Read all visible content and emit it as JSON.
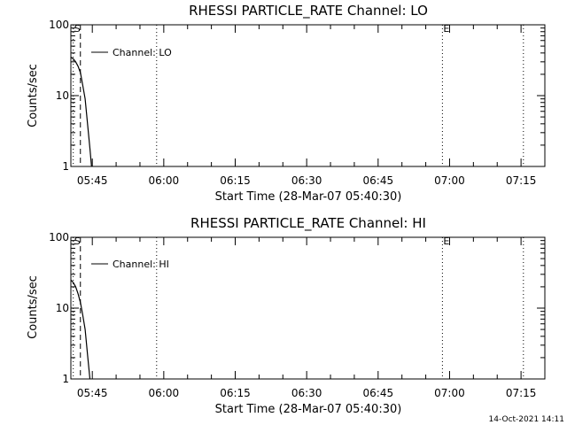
{
  "timestamp": "14-Oct-2021 14:11",
  "colors": {
    "background": "#ffffff",
    "foreground": "#000000"
  },
  "chart_data": [
    {
      "type": "line",
      "title": "RHESSI PARTICLE_RATE Channel: LO",
      "xlabel": "Start Time (28-Mar-07 05:40:30)",
      "ylabel": "Counts/sec",
      "y_scale": "log",
      "ylim": [
        1,
        100
      ],
      "y_ticks": [
        {
          "value": 1,
          "label": "1"
        },
        {
          "value": 10,
          "label": "10"
        },
        {
          "value": 100,
          "label": "100"
        }
      ],
      "xlim": [
        "05:40:30",
        "07:20:00"
      ],
      "x_ticks": [
        "05:45",
        "06:00",
        "06:15",
        "06:30",
        "06:45",
        "07:00",
        "07:15"
      ],
      "grid": false,
      "legend_position": "top-left",
      "series": [
        {
          "name": "Channel: LO",
          "x": [
            "05:40:30",
            "05:41:00",
            "05:41:30",
            "05:42:00",
            "05:42:30",
            "05:43:00",
            "05:43:30",
            "05:44:00",
            "05:44:30",
            "05:44:50"
          ],
          "y": [
            35,
            33,
            30,
            26,
            21,
            14,
            9,
            4,
            1.8,
            1
          ]
        }
      ],
      "event_markers": [
        {
          "label": "S",
          "time": "05:41:00",
          "style": "dotted"
        },
        {
          "label": "",
          "time": "05:42:30",
          "style": "dashed"
        },
        {
          "label": "",
          "time": "05:58:30",
          "style": "dotted"
        },
        {
          "label": "E",
          "time": "06:58:30",
          "style": "dotted"
        },
        {
          "label": "",
          "time": "07:15:30",
          "style": "dotted"
        }
      ]
    },
    {
      "type": "line",
      "title": "RHESSI PARTICLE_RATE Channel: HI",
      "xlabel": "Start Time (28-Mar-07 05:40:30)",
      "ylabel": "Counts/sec",
      "y_scale": "log",
      "ylim": [
        1,
        100
      ],
      "y_ticks": [
        {
          "value": 1,
          "label": "1"
        },
        {
          "value": 10,
          "label": "10"
        },
        {
          "value": 100,
          "label": "100"
        }
      ],
      "xlim": [
        "05:40:30",
        "07:20:00"
      ],
      "x_ticks": [
        "05:45",
        "06:00",
        "06:15",
        "06:30",
        "06:45",
        "07:00",
        "07:15"
      ],
      "grid": false,
      "legend_position": "top-left",
      "series": [
        {
          "name": "Channel: HI",
          "x": [
            "05:40:30",
            "05:41:00",
            "05:41:30",
            "05:42:00",
            "05:42:30",
            "05:43:00",
            "05:43:30",
            "05:44:00",
            "05:44:30"
          ],
          "y": [
            25,
            23,
            20,
            16,
            12,
            8,
            5,
            2.2,
            1
          ]
        }
      ],
      "event_markers": [
        {
          "label": "S",
          "time": "05:41:00",
          "style": "dotted"
        },
        {
          "label": "",
          "time": "05:42:30",
          "style": "dashed"
        },
        {
          "label": "",
          "time": "05:58:30",
          "style": "dotted"
        },
        {
          "label": "E",
          "time": "06:58:30",
          "style": "dotted"
        },
        {
          "label": "",
          "time": "07:15:30",
          "style": "dotted"
        }
      ]
    }
  ]
}
